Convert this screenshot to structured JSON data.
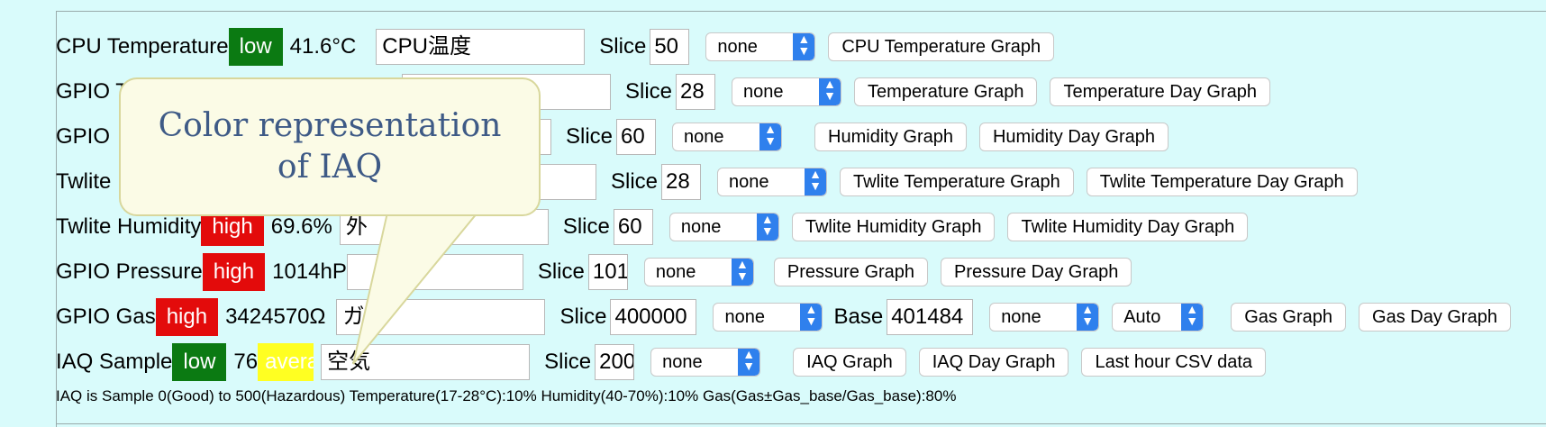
{
  "rows": [
    {
      "label": "CPU Temperature",
      "badge": "low",
      "badge_class": "low",
      "value": "41.6°C",
      "name": "CPU温度",
      "slice": "50",
      "select": "none",
      "buttons": [
        "CPU Temperature Graph"
      ]
    },
    {
      "label": "GPIO T",
      "badge": "",
      "badge_class": "low",
      "value": "",
      "name": "",
      "slice": "28",
      "select": "none",
      "buttons": [
        "Temperature Graph",
        "Temperature Day Graph"
      ]
    },
    {
      "label": "GPIO",
      "badge": "",
      "badge_class": "",
      "value": "",
      "name": "",
      "slice": "60",
      "select": "none",
      "buttons": [
        "Humidity Graph",
        "Humidity Day Graph"
      ]
    },
    {
      "label": "Twlite",
      "badge": "",
      "badge_class": "",
      "value": "",
      "name": "",
      "slice": "28",
      "select": "none",
      "buttons": [
        "Twlite Temperature Graph",
        "Twlite Temperature Day Graph"
      ]
    },
    {
      "label": "Twlite Humidity",
      "badge": "high",
      "badge_class": "high",
      "value": "69.6%",
      "name": "外",
      "slice": "60",
      "select": "none",
      "buttons": [
        "Twlite Humidity Graph",
        "Twlite Humidity Day Graph"
      ]
    },
    {
      "label": "GPIO Pressure",
      "badge": "high",
      "badge_class": "high",
      "value": "1014hP",
      "name": "",
      "slice": "101",
      "select": "none",
      "buttons": [
        "Pressure Graph",
        "Pressure Day Graph"
      ]
    },
    {
      "label": "GPIO Gas",
      "badge": "high",
      "badge_class": "high",
      "value": "3424570Ω",
      "name": "ガス",
      "slice": "400000",
      "select": "none",
      "base_label": "Base",
      "base_value": "401484",
      "base_select": "none",
      "auto_select": "Auto",
      "buttons": [
        "Gas Graph",
        "Gas Day Graph"
      ]
    },
    {
      "label": "IAQ Sample",
      "badge": "low",
      "badge_class": "low",
      "value": "76",
      "badge2": "average",
      "name": "空気",
      "slice": "200",
      "select": "none",
      "buttons": [
        "IAQ Graph",
        "IAQ Day Graph",
        "Last hour CSV data"
      ]
    }
  ],
  "slice_label": "Slice",
  "footer": "IAQ is Sample 0(Good) to 500(Hazardous) Temperature(17-28°C):10% Humidity(40-70%):10% Gas(Gas±Gas_base/Gas_base):80%",
  "callout": "Color representation of IAQ",
  "colors": {
    "low": "#0b7a12",
    "high": "#e30b0b",
    "average": "#ffff22",
    "panel": "#d9fbfb",
    "callout_text": "#3e5a86"
  },
  "icons": {
    "select_chevron": "chevron-updown-icon"
  }
}
